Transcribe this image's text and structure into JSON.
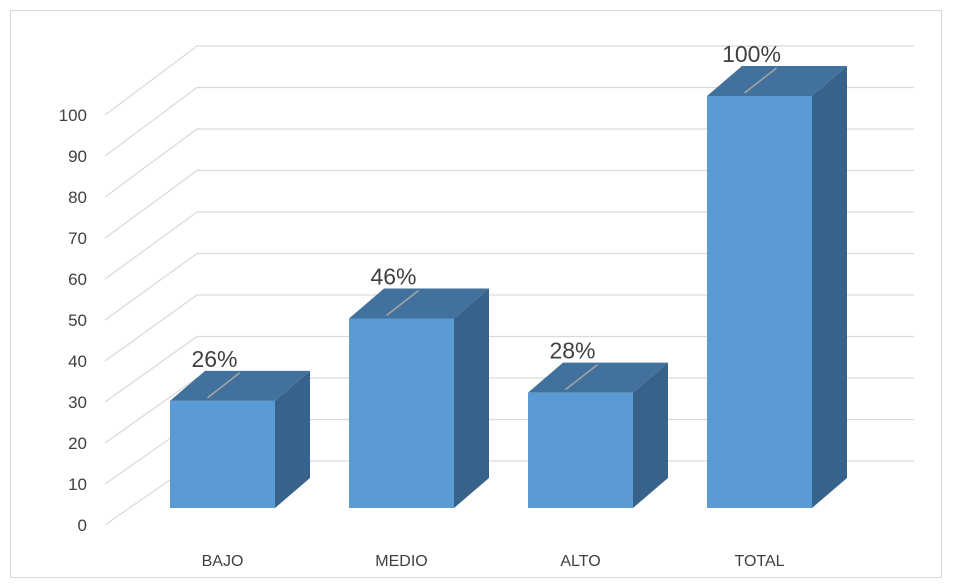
{
  "chart_data": {
    "type": "bar",
    "categories": [
      "BAJO",
      "MEDIO",
      "ALTO",
      "TOTAL"
    ],
    "values": [
      26,
      46,
      28,
      100
    ],
    "data_labels": [
      "26%",
      "46%",
      "28%",
      "100%"
    ],
    "yticks": [
      "0",
      "10",
      "20",
      "30",
      "40",
      "50",
      "60",
      "70",
      "80",
      "90",
      "100"
    ],
    "ylim": [
      0,
      110
    ],
    "grid": true,
    "style": "3d-column",
    "colors": {
      "front": "#5b9bd5",
      "top": "#41719c",
      "side": "#376289",
      "grid": "#d9d9d9"
    }
  }
}
